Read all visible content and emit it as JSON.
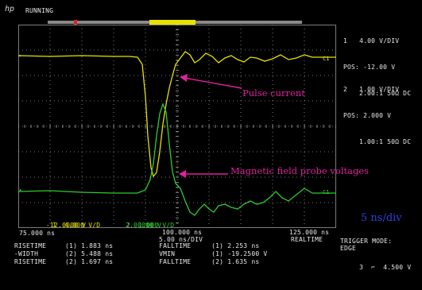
{
  "header": {
    "logo": "hp",
    "status": "RUNNING"
  },
  "colors": {
    "ch1": "#e7e100",
    "ch2": "#2ecb2e",
    "annotation": "#e0209e",
    "timebase_label": "#2f3fdc",
    "grid": "#9a9a9a",
    "background": "#000000"
  },
  "channels": {
    "ch1": {
      "number": "1",
      "scale": "4.00 V/DIV",
      "pos": "POS: -12.00 V",
      "coupling": "2.00:1 50Ω DC",
      "marker": "C1"
    },
    "ch2": {
      "number": "2",
      "scale": "1.00 V/DIV",
      "pos": "POS: 2.000 V",
      "coupling": "1.00:1 50Ω DC",
      "marker": "C1"
    }
  },
  "trigger": {
    "mode_label": "TRIGGER MODE:",
    "mode": "EDGE",
    "source": "3",
    "level": "4.500 V"
  },
  "in_plot_readout": {
    "ch1_num": "1",
    "ch1_scale": "4.000 V/D",
    "ch1_offset": "-12.0000 V",
    "ch2_num": "2",
    "ch2_scale": "1.000 V/D",
    "ch2_offset": "2.00000 V"
  },
  "timebase": {
    "left": "75.000 ns",
    "center": "100.000 ns",
    "right": "125.000 ns",
    "per_div": "5.00 ns/DIV",
    "mode": "REALTIME"
  },
  "measurements": [
    {
      "left_name": "RISETIME",
      "left_ch": "1",
      "left_val": "1.883 ns",
      "right_name": "FALLTIME",
      "right_ch": "1",
      "right_val": "2.253 ns"
    },
    {
      "left_name": "-WIDTH",
      "left_ch": "2",
      "left_val": "5.488 ns",
      "right_name": "VMIN",
      "right_ch": "1",
      "right_val": "-19.2500 V"
    },
    {
      "left_name": "RISETIME",
      "left_ch": "2",
      "left_val": "1.697 ns",
      "right_name": "FALLTIME",
      "right_ch": "2",
      "right_val": "1.635 ns"
    }
  ],
  "annotations": {
    "pulse_current": "Pulse current",
    "probe_voltage": "Magnetic field probe voltages",
    "timebase_label": "5 ns/div"
  }
}
